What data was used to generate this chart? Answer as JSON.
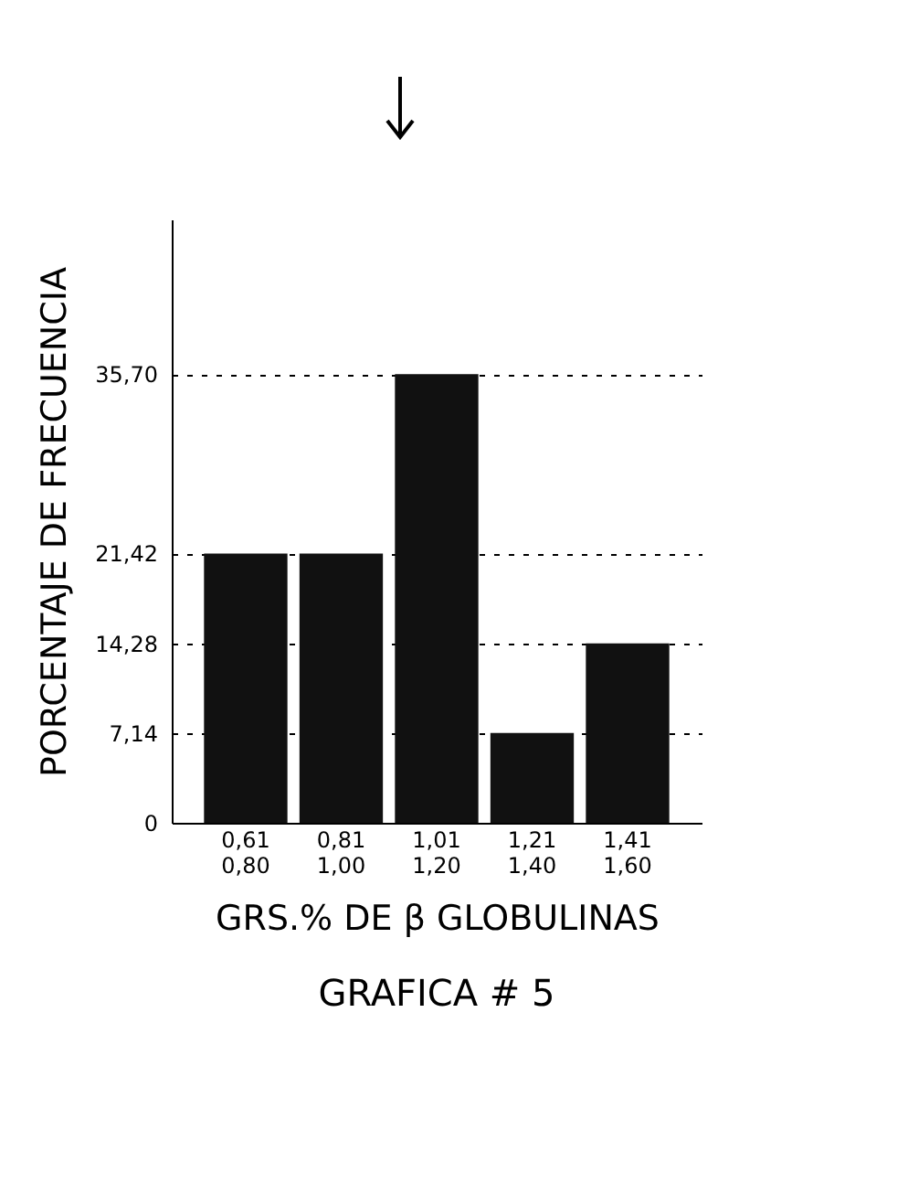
{
  "chart_data": {
    "type": "bar",
    "title": "GRAFICA # 5",
    "xlabel": "GRS.% DE β GLOBULINAS",
    "ylabel": "PORCENTAJE DE FRECUENCIA",
    "categories": [
      "0,61 0,80",
      "0,81 1,00",
      "1,01 1,20",
      "1,21 1,40",
      "1,41 1,60"
    ],
    "values": [
      21.42,
      21.42,
      35.7,
      7.14,
      14.28
    ],
    "color": "#111111",
    "ylim": [
      0,
      48
    ],
    "yticks": [
      0,
      {
        "value": 7.14,
        "label": "7,14"
      },
      {
        "value": 14.28,
        "label": "14,28"
      },
      {
        "value": 21.42,
        "label": "21,42"
      },
      {
        "value": 35.7,
        "label": "35,70"
      }
    ],
    "grid": "y"
  }
}
